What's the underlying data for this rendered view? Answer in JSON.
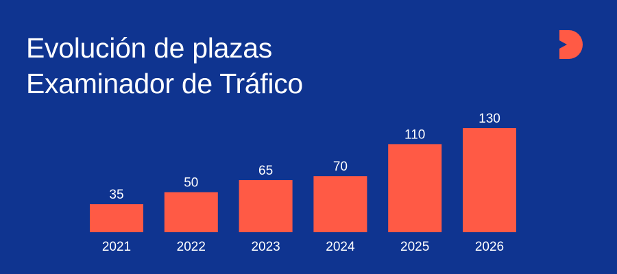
{
  "header": {
    "title_line1": "Evolución de plazas",
    "title_line2": "Examinador de Tráfico"
  },
  "logo": {
    "icon": "brand-d-icon",
    "color": "#ff5a45"
  },
  "colors": {
    "background": "#0f3490",
    "bar": "#ff5a45",
    "text": "#ffffff"
  },
  "chart_data": {
    "type": "bar",
    "categories": [
      "2021",
      "2022",
      "2023",
      "2024",
      "2025",
      "2026"
    ],
    "values": [
      35,
      50,
      65,
      70,
      110,
      130
    ],
    "title": "Evolución de plazas Examinador de Tráfico",
    "xlabel": "",
    "ylabel": "",
    "ylim": [
      0,
      130
    ],
    "grid": false,
    "legend": "none",
    "data_labels": true
  }
}
